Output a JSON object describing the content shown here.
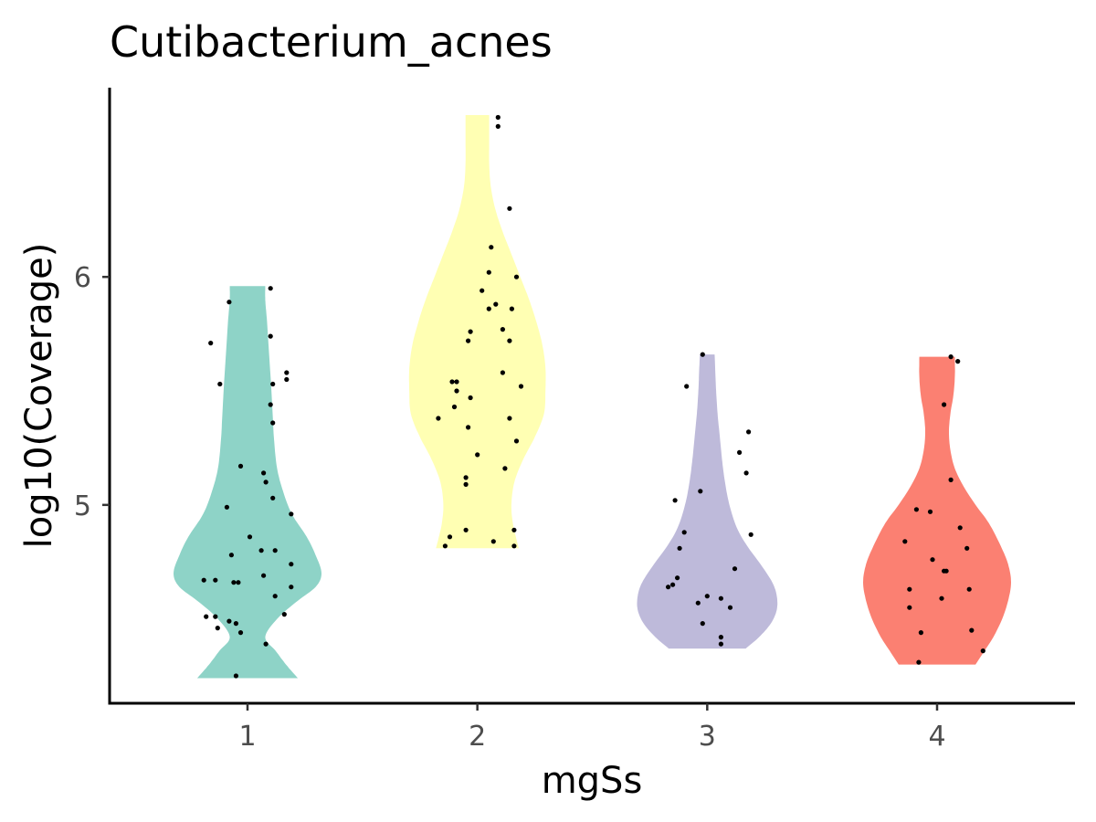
{
  "chart_data": {
    "type": "violin",
    "title": "Cutibacterium_acnes",
    "xlabel": "mgSs",
    "ylabel": "log10(Coverage)",
    "categories": [
      "1",
      "2",
      "3",
      "4"
    ],
    "yticks": [
      5,
      6
    ],
    "ylim": [
      4.13,
      6.83
    ],
    "grid": false,
    "legend": "none",
    "colors": [
      "#8ED3C7",
      "#FFFFB3",
      "#BEBADA",
      "#FB8072"
    ],
    "groups": [
      {
        "category": "1",
        "range": [
          4.24,
          5.96
        ],
        "density": [
          [
            4.24,
            0.68
          ],
          [
            4.3,
            0.52
          ],
          [
            4.36,
            0.38
          ],
          [
            4.42,
            0.24
          ],
          [
            4.5,
            0.4
          ],
          [
            4.58,
            0.68
          ],
          [
            4.64,
            0.92
          ],
          [
            4.7,
            1.0
          ],
          [
            4.78,
            0.92
          ],
          [
            4.86,
            0.8
          ],
          [
            4.96,
            0.6
          ],
          [
            5.06,
            0.48
          ],
          [
            5.16,
            0.4
          ],
          [
            5.28,
            0.36
          ],
          [
            5.4,
            0.34
          ],
          [
            5.52,
            0.32
          ],
          [
            5.62,
            0.3
          ],
          [
            5.72,
            0.28
          ],
          [
            5.82,
            0.26
          ],
          [
            5.9,
            0.24
          ],
          [
            5.96,
            0.24
          ]
        ],
        "points": [
          [
            0.84,
            5.71
          ],
          [
            0.92,
            5.89
          ],
          [
            0.88,
            5.53
          ],
          [
            1.1,
            5.95
          ],
          [
            1.1,
            5.74
          ],
          [
            1.17,
            5.58
          ],
          [
            1.17,
            5.55
          ],
          [
            1.11,
            5.53
          ],
          [
            1.1,
            5.44
          ],
          [
            1.11,
            5.36
          ],
          [
            0.97,
            5.17
          ],
          [
            1.07,
            5.14
          ],
          [
            1.08,
            5.1
          ],
          [
            1.11,
            5.03
          ],
          [
            0.91,
            4.99
          ],
          [
            1.19,
            4.96
          ],
          [
            1.01,
            4.86
          ],
          [
            1.06,
            4.8
          ],
          [
            0.93,
            4.78
          ],
          [
            1.12,
            4.8
          ],
          [
            1.19,
            4.74
          ],
          [
            1.07,
            4.69
          ],
          [
            0.86,
            4.67
          ],
          [
            0.81,
            4.67
          ],
          [
            0.94,
            4.66
          ],
          [
            0.96,
            4.66
          ],
          [
            1.19,
            4.64
          ],
          [
            1.12,
            4.6
          ],
          [
            1.16,
            4.52
          ],
          [
            0.82,
            4.51
          ],
          [
            0.86,
            4.51
          ],
          [
            0.92,
            4.49
          ],
          [
            0.95,
            4.48
          ],
          [
            0.87,
            4.46
          ],
          [
            0.97,
            4.44
          ],
          [
            1.08,
            4.39
          ],
          [
            0.95,
            4.25
          ]
        ]
      },
      {
        "category": "2",
        "range": [
          4.81,
          6.71
        ],
        "density": [
          [
            4.81,
            0.56
          ],
          [
            4.86,
            0.52
          ],
          [
            4.92,
            0.48
          ],
          [
            5.0,
            0.46
          ],
          [
            5.1,
            0.5
          ],
          [
            5.2,
            0.62
          ],
          [
            5.3,
            0.78
          ],
          [
            5.4,
            0.9
          ],
          [
            5.5,
            0.92
          ],
          [
            5.6,
            0.92
          ],
          [
            5.7,
            0.88
          ],
          [
            5.8,
            0.8
          ],
          [
            5.9,
            0.7
          ],
          [
            6.0,
            0.58
          ],
          [
            6.1,
            0.46
          ],
          [
            6.2,
            0.34
          ],
          [
            6.3,
            0.24
          ],
          [
            6.4,
            0.18
          ],
          [
            6.5,
            0.16
          ],
          [
            6.6,
            0.16
          ],
          [
            6.71,
            0.16
          ]
        ],
        "points": [
          [
            2.09,
            6.7
          ],
          [
            2.09,
            6.66
          ],
          [
            2.14,
            6.3
          ],
          [
            2.06,
            6.13
          ],
          [
            2.05,
            6.02
          ],
          [
            2.17,
            6.0
          ],
          [
            2.02,
            5.94
          ],
          [
            2.08,
            5.88
          ],
          [
            2.05,
            5.86
          ],
          [
            2.15,
            5.86
          ],
          [
            1.97,
            5.76
          ],
          [
            2.11,
            5.77
          ],
          [
            1.96,
            5.72
          ],
          [
            2.14,
            5.72
          ],
          [
            2.11,
            5.58
          ],
          [
            1.89,
            5.54
          ],
          [
            1.91,
            5.54
          ],
          [
            1.91,
            5.5
          ],
          [
            2.19,
            5.52
          ],
          [
            1.97,
            5.47
          ],
          [
            1.9,
            5.43
          ],
          [
            1.83,
            5.38
          ],
          [
            2.14,
            5.38
          ],
          [
            1.96,
            5.34
          ],
          [
            2.17,
            5.28
          ],
          [
            2.0,
            5.22
          ],
          [
            2.12,
            5.16
          ],
          [
            1.95,
            5.12
          ],
          [
            1.95,
            5.09
          ],
          [
            1.95,
            4.89
          ],
          [
            1.88,
            4.86
          ],
          [
            2.16,
            4.89
          ],
          [
            1.86,
            4.82
          ],
          [
            2.07,
            4.84
          ],
          [
            2.16,
            4.82
          ]
        ]
      },
      {
        "category": "3",
        "range": [
          4.37,
          5.66
        ],
        "density": [
          [
            4.37,
            0.52
          ],
          [
            4.42,
            0.7
          ],
          [
            4.48,
            0.86
          ],
          [
            4.54,
            0.94
          ],
          [
            4.6,
            0.94
          ],
          [
            4.66,
            0.88
          ],
          [
            4.74,
            0.72
          ],
          [
            4.82,
            0.54
          ],
          [
            4.9,
            0.4
          ],
          [
            5.0,
            0.3
          ],
          [
            5.1,
            0.24
          ],
          [
            5.2,
            0.2
          ],
          [
            5.3,
            0.17
          ],
          [
            5.4,
            0.14
          ],
          [
            5.5,
            0.12
          ],
          [
            5.58,
            0.11
          ],
          [
            5.66,
            0.1
          ]
        ],
        "points": [
          [
            2.98,
            5.66
          ],
          [
            2.91,
            5.52
          ],
          [
            3.18,
            5.32
          ],
          [
            3.14,
            5.23
          ],
          [
            3.17,
            5.14
          ],
          [
            2.97,
            5.06
          ],
          [
            2.86,
            5.02
          ],
          [
            2.9,
            4.88
          ],
          [
            3.19,
            4.87
          ],
          [
            2.88,
            4.81
          ],
          [
            3.12,
            4.72
          ],
          [
            2.87,
            4.68
          ],
          [
            2.85,
            4.65
          ],
          [
            2.83,
            4.64
          ],
          [
            3.0,
            4.6
          ],
          [
            3.06,
            4.59
          ],
          [
            2.96,
            4.57
          ],
          [
            3.1,
            4.55
          ],
          [
            2.98,
            4.48
          ],
          [
            3.06,
            4.42
          ],
          [
            3.06,
            4.39
          ]
        ]
      },
      {
        "category": "4",
        "range": [
          4.3,
          5.65
        ],
        "density": [
          [
            4.3,
            0.52
          ],
          [
            4.36,
            0.64
          ],
          [
            4.42,
            0.76
          ],
          [
            4.5,
            0.88
          ],
          [
            4.58,
            0.96
          ],
          [
            4.66,
            1.0
          ],
          [
            4.74,
            0.96
          ],
          [
            4.82,
            0.86
          ],
          [
            4.92,
            0.7
          ],
          [
            5.0,
            0.52
          ],
          [
            5.08,
            0.36
          ],
          [
            5.16,
            0.24
          ],
          [
            5.24,
            0.18
          ],
          [
            5.32,
            0.16
          ],
          [
            5.4,
            0.18
          ],
          [
            5.48,
            0.22
          ],
          [
            5.56,
            0.24
          ],
          [
            5.65,
            0.24
          ]
        ],
        "points": [
          [
            4.06,
            5.65
          ],
          [
            4.09,
            5.63
          ],
          [
            4.03,
            5.44
          ],
          [
            4.06,
            5.11
          ],
          [
            3.91,
            4.98
          ],
          [
            3.97,
            4.97
          ],
          [
            4.1,
            4.9
          ],
          [
            3.86,
            4.84
          ],
          [
            4.13,
            4.81
          ],
          [
            3.98,
            4.76
          ],
          [
            4.03,
            4.71
          ],
          [
            4.04,
            4.71
          ],
          [
            3.88,
            4.63
          ],
          [
            4.14,
            4.63
          ],
          [
            4.02,
            4.59
          ],
          [
            3.88,
            4.55
          ],
          [
            3.93,
            4.44
          ],
          [
            4.15,
            4.45
          ],
          [
            4.2,
            4.36
          ],
          [
            3.92,
            4.31
          ]
        ]
      }
    ]
  }
}
